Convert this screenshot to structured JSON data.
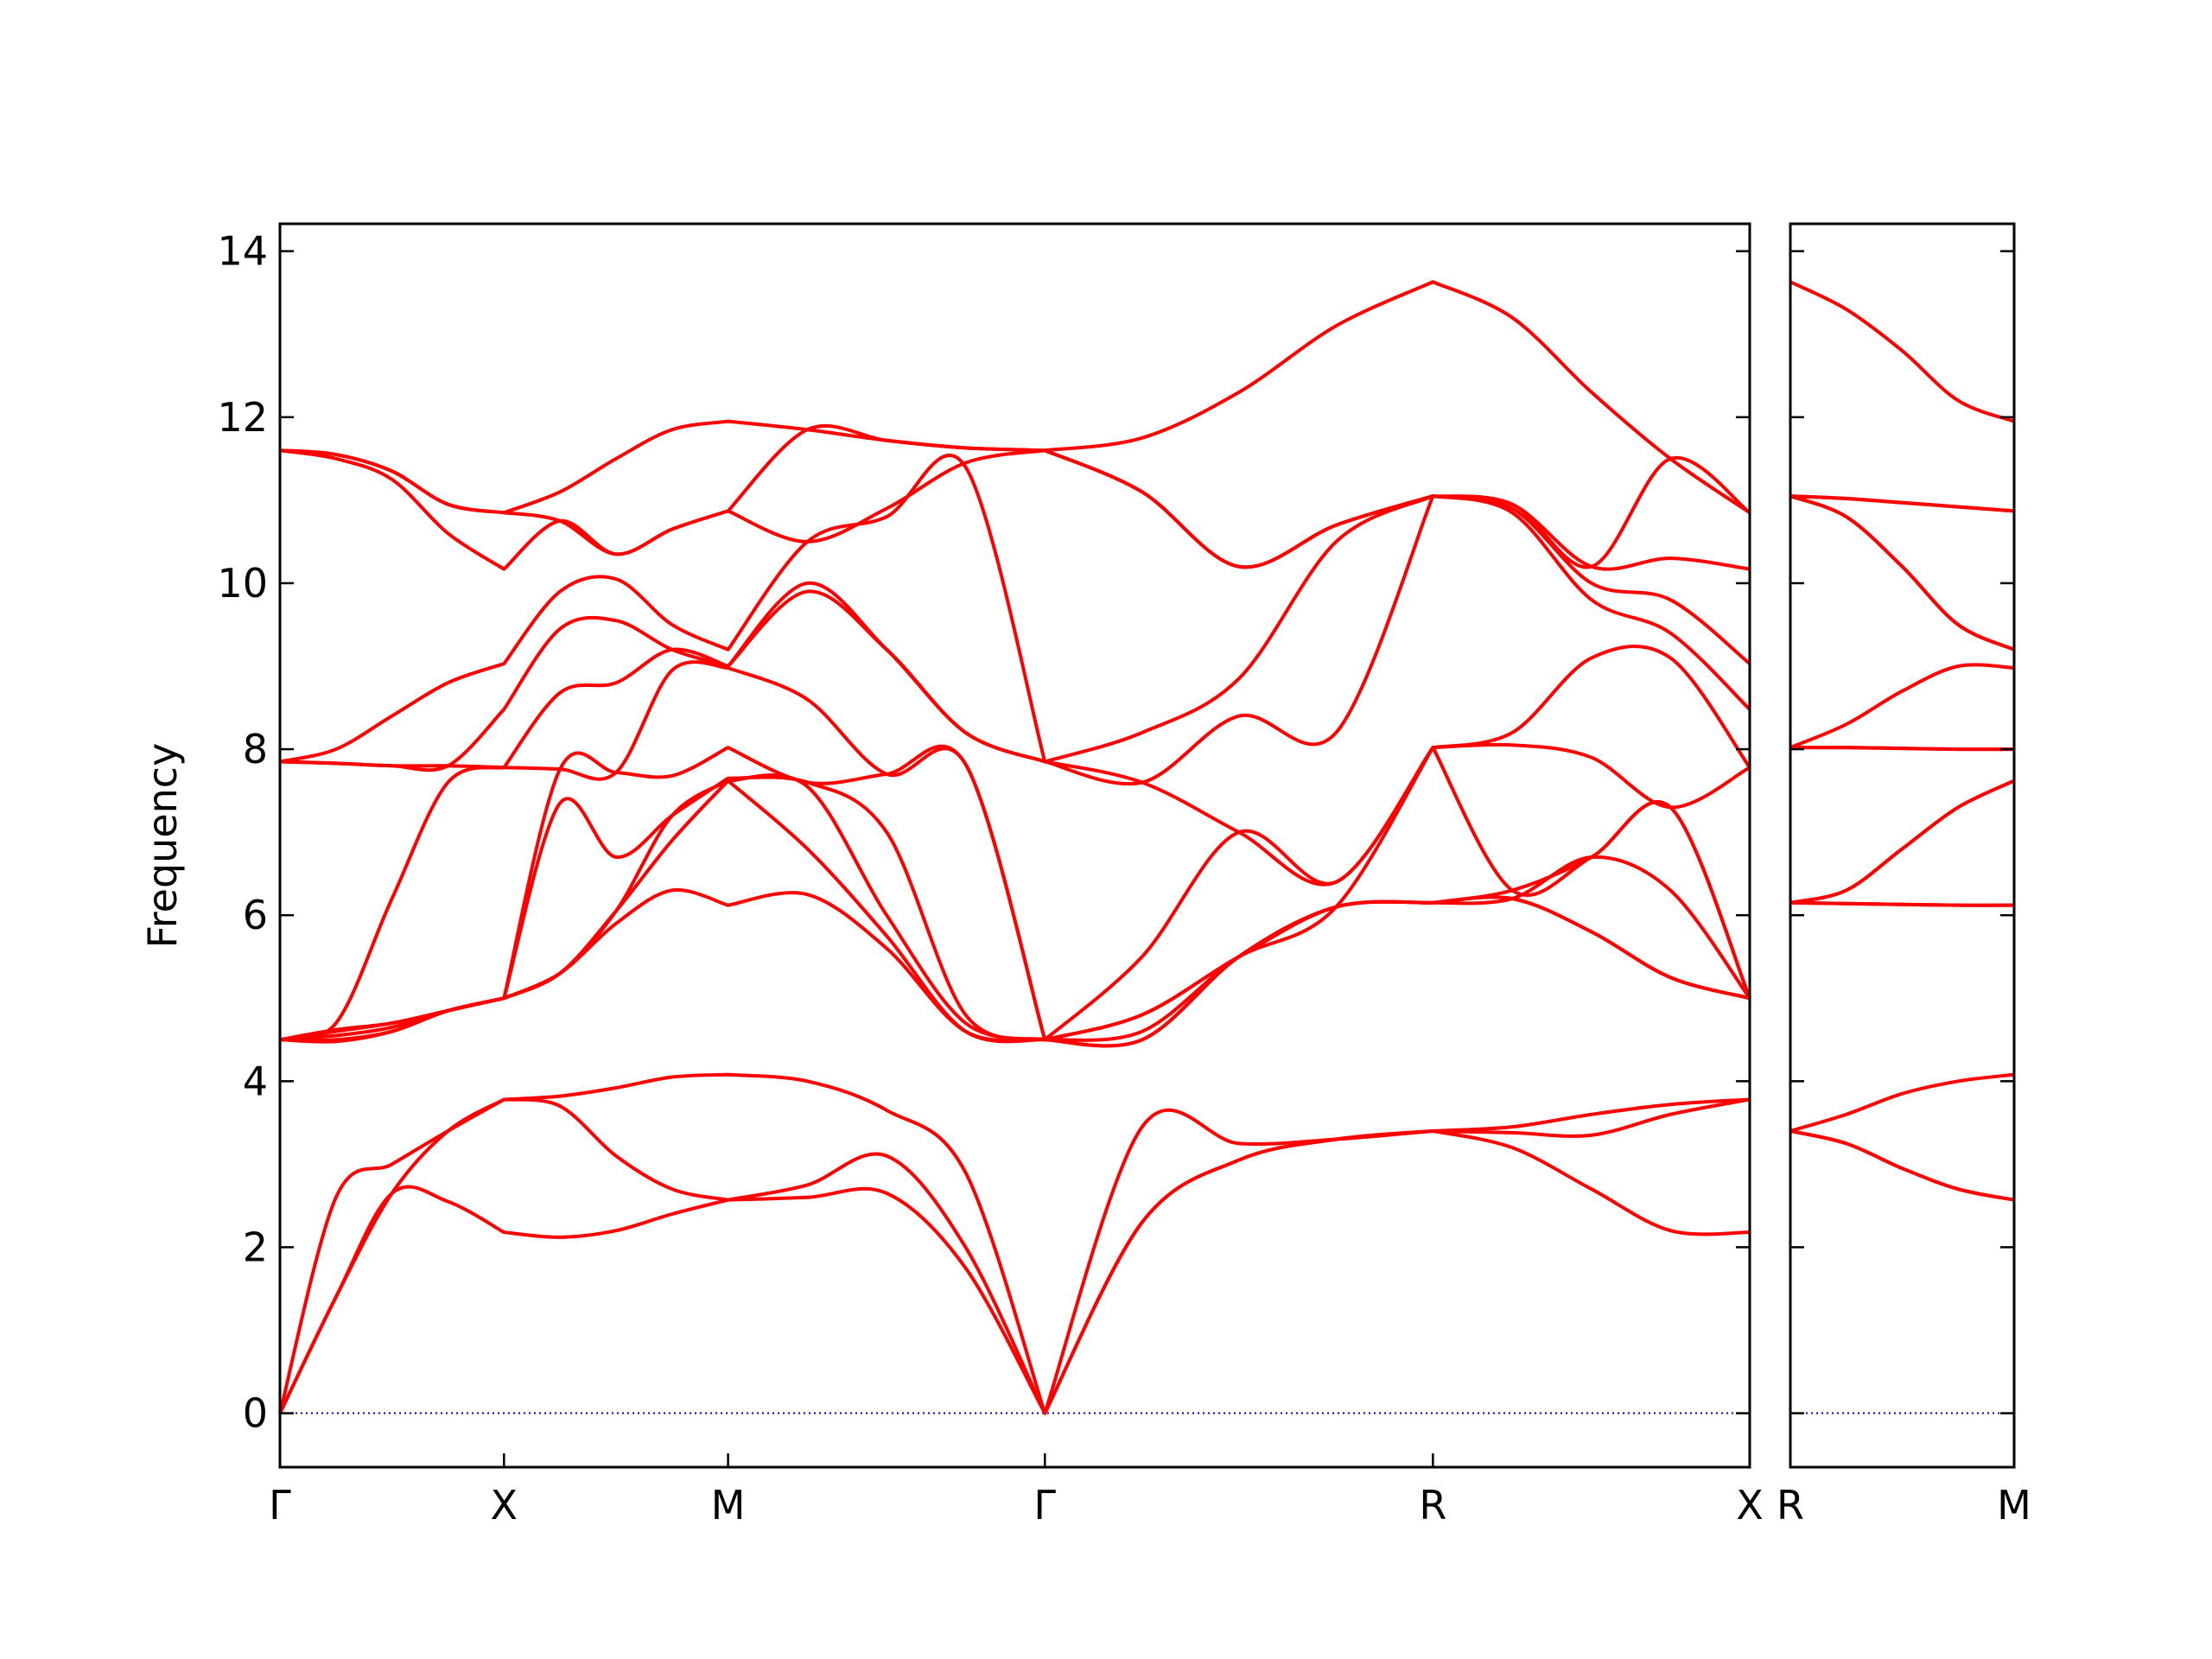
{
  "chart_data": [
    {
      "type": "line",
      "ylabel": "Frequency",
      "x": [
        0,
        0.125,
        0.25,
        0.375,
        0.5,
        0.625,
        0.75,
        0.875,
        1.0,
        1.177,
        1.354,
        1.53,
        1.707,
        1.924,
        2.14,
        2.357,
        2.573,
        2.75,
        2.927,
        3.103,
        3.28
      ],
      "xlim": [
        0,
        3.28
      ],
      "xticks": [
        {
          "value": 0,
          "label": "Γ"
        },
        {
          "value": 0.5,
          "label": "X"
        },
        {
          "value": 1.0,
          "label": "M"
        },
        {
          "value": 1.707,
          "label": "Γ"
        },
        {
          "value": 2.573,
          "label": "R"
        },
        {
          "value": 3.28,
          "label": "X"
        }
      ],
      "ylim": [
        -0.65,
        14.33
      ],
      "yticks": [
        0,
        2,
        4,
        6,
        8,
        10,
        12,
        14
      ],
      "ytick_labels": true,
      "line_color": "#ff0000",
      "hline": 0,
      "hline_color": "#0000cd",
      "series": [
        {
          "values": [
            0,
            1.4,
            2.65,
            2.55,
            2.18,
            2.12,
            2.2,
            2.4,
            2.57,
            2.6,
            2.65,
            1.75,
            0,
            2.3,
            3.05,
            3.3,
            3.4,
            3.2,
            2.7,
            2.2,
            2.18
          ]
        },
        {
          "values": [
            0,
            1.4,
            2.65,
            3.4,
            3.78,
            3.7,
            3.1,
            2.7,
            2.57,
            2.75,
            3.1,
            2.0,
            0,
            2.3,
            3.05,
            3.3,
            3.4,
            3.38,
            3.35,
            3.6,
            3.78
          ]
        },
        {
          "values": [
            0,
            2.6,
            3.0,
            3.4,
            3.78,
            3.82,
            3.92,
            4.05,
            4.08,
            4.0,
            3.65,
            2.9,
            0,
            3.45,
            3.25,
            3.3,
            3.4,
            3.45,
            3.6,
            3.72,
            3.78
          ]
        },
        {
          "values": [
            4.5,
            4.48,
            4.6,
            4.85,
            5.0,
            5.3,
            5.9,
            6.3,
            6.12,
            6.25,
            5.6,
            4.6,
            4.5,
            4.5,
            5.5,
            6.1,
            6.15,
            6.2,
            5.8,
            5.25,
            5.0
          ]
        },
        {
          "values": [
            4.5,
            4.5,
            4.6,
            4.85,
            5.0,
            5.3,
            6.05,
            6.9,
            7.62,
            6.8,
            5.75,
            4.6,
            4.5,
            4.5,
            5.5,
            6.1,
            6.15,
            6.2,
            5.8,
            5.25,
            5.0
          ]
        },
        {
          "values": [
            4.5,
            4.55,
            4.65,
            4.85,
            5.0,
            5.3,
            6.05,
            7.2,
            7.62,
            7.55,
            6.0,
            4.7,
            4.5,
            4.6,
            5.5,
            6.1,
            6.15,
            6.2,
            6.7,
            6.3,
            5.0
          ]
        },
        {
          "values": [
            4.5,
            4.6,
            4.7,
            4.85,
            5.0,
            7.35,
            6.7,
            7.2,
            7.65,
            7.6,
            7.0,
            4.8,
            4.5,
            4.8,
            5.5,
            6.1,
            6.15,
            6.3,
            6.7,
            7.3,
            5.0
          ]
        },
        {
          "values": [
            4.5,
            4.62,
            4.7,
            4.85,
            5.0,
            7.76,
            7.72,
            7.68,
            8.02,
            7.6,
            7.7,
            7.82,
            4.5,
            4.8,
            5.5,
            6.1,
            8.02,
            6.3,
            6.7,
            7.3,
            5.0
          ]
        },
        {
          "values": [
            4.5,
            4.7,
            6.2,
            7.6,
            7.78,
            7.76,
            7.72,
            8.95,
            8.98,
            8.6,
            7.7,
            7.82,
            4.5,
            5.5,
            7.0,
            6.4,
            8.02,
            8.05,
            7.9,
            7.3,
            7.78
          ]
        },
        {
          "values": [
            7.85,
            7.83,
            7.8,
            7.8,
            7.78,
            8.68,
            8.8,
            9.2,
            9.0,
            9.9,
            9.2,
            8.2,
            7.85,
            7.6,
            7.0,
            6.4,
            8.02,
            8.2,
            9.1,
            9.1,
            7.78
          ]
        },
        {
          "values": [
            7.85,
            7.83,
            7.8,
            7.8,
            8.48,
            9.45,
            9.55,
            9.2,
            9.0,
            10.0,
            9.2,
            8.2,
            7.85,
            7.6,
            8.4,
            8.2,
            11.05,
            10.85,
            9.8,
            9.4,
            8.48
          ]
        },
        {
          "values": [
            7.85,
            8.0,
            8.4,
            8.8,
            9.03,
            9.9,
            10.05,
            9.5,
            9.2,
            10.5,
            10.8,
            11.4,
            7.85,
            8.2,
            8.85,
            10.5,
            11.05,
            10.9,
            10.0,
            9.8,
            9.03
          ]
        },
        {
          "values": [
            11.6,
            11.5,
            11.25,
            10.6,
            10.17,
            10.75,
            10.35,
            10.65,
            10.87,
            10.5,
            10.9,
            11.45,
            11.6,
            11.1,
            10.2,
            10.7,
            11.05,
            10.95,
            10.2,
            10.3,
            10.17
          ]
        },
        {
          "values": [
            11.6,
            11.55,
            11.35,
            10.95,
            10.85,
            10.75,
            10.35,
            10.65,
            10.87,
            11.85,
            11.72,
            11.63,
            11.6,
            11.1,
            10.2,
            10.7,
            11.05,
            10.95,
            10.2,
            11.5,
            10.85
          ]
        },
        {
          "values": [
            11.6,
            11.55,
            11.35,
            10.95,
            10.85,
            11.1,
            11.5,
            11.85,
            11.95,
            11.85,
            11.72,
            11.63,
            11.6,
            11.75,
            12.3,
            13.1,
            13.63,
            13.2,
            12.3,
            11.5,
            10.85
          ]
        }
      ]
    },
    {
      "type": "line",
      "x": [
        0,
        0.125,
        0.25,
        0.375,
        0.5
      ],
      "xlim": [
        0,
        0.5
      ],
      "xticks": [
        {
          "value": 0,
          "label": "R"
        },
        {
          "value": 0.5,
          "label": "M"
        }
      ],
      "ylim": [
        -0.65,
        14.33
      ],
      "yticks": [
        0,
        2,
        4,
        6,
        8,
        10,
        12,
        14
      ],
      "ytick_labels": false,
      "line_color": "#ff0000",
      "hline": 0,
      "hline_color": "#0000cd",
      "series": [
        {
          "values": [
            3.4,
            3.25,
            2.95,
            2.7,
            2.57
          ]
        },
        {
          "values": [
            3.4,
            3.25,
            2.95,
            2.7,
            2.57
          ]
        },
        {
          "values": [
            3.4,
            3.6,
            3.85,
            4.0,
            4.08
          ]
        },
        {
          "values": [
            6.15,
            6.14,
            6.13,
            6.12,
            6.12
          ]
        },
        {
          "values": [
            6.15,
            6.14,
            6.13,
            6.12,
            6.12
          ]
        },
        {
          "values": [
            6.15,
            6.3,
            6.8,
            7.3,
            7.62
          ]
        },
        {
          "values": [
            6.15,
            6.3,
            6.8,
            7.3,
            7.62
          ]
        },
        {
          "values": [
            8.02,
            8.02,
            8.01,
            8.0,
            8.0
          ]
        },
        {
          "values": [
            8.02,
            8.02,
            8.01,
            8.0,
            8.0
          ]
        },
        {
          "values": [
            8.02,
            8.3,
            8.7,
            9.0,
            8.98
          ]
        },
        {
          "values": [
            11.05,
            10.8,
            10.2,
            9.5,
            9.2
          ]
        },
        {
          "values": [
            11.05,
            10.8,
            10.2,
            9.5,
            9.2
          ]
        },
        {
          "values": [
            11.05,
            11.02,
            10.97,
            10.92,
            10.87
          ]
        },
        {
          "values": [
            11.05,
            11.02,
            10.97,
            10.92,
            10.87
          ]
        },
        {
          "values": [
            13.63,
            13.3,
            12.8,
            12.2,
            11.95
          ]
        }
      ]
    }
  ]
}
